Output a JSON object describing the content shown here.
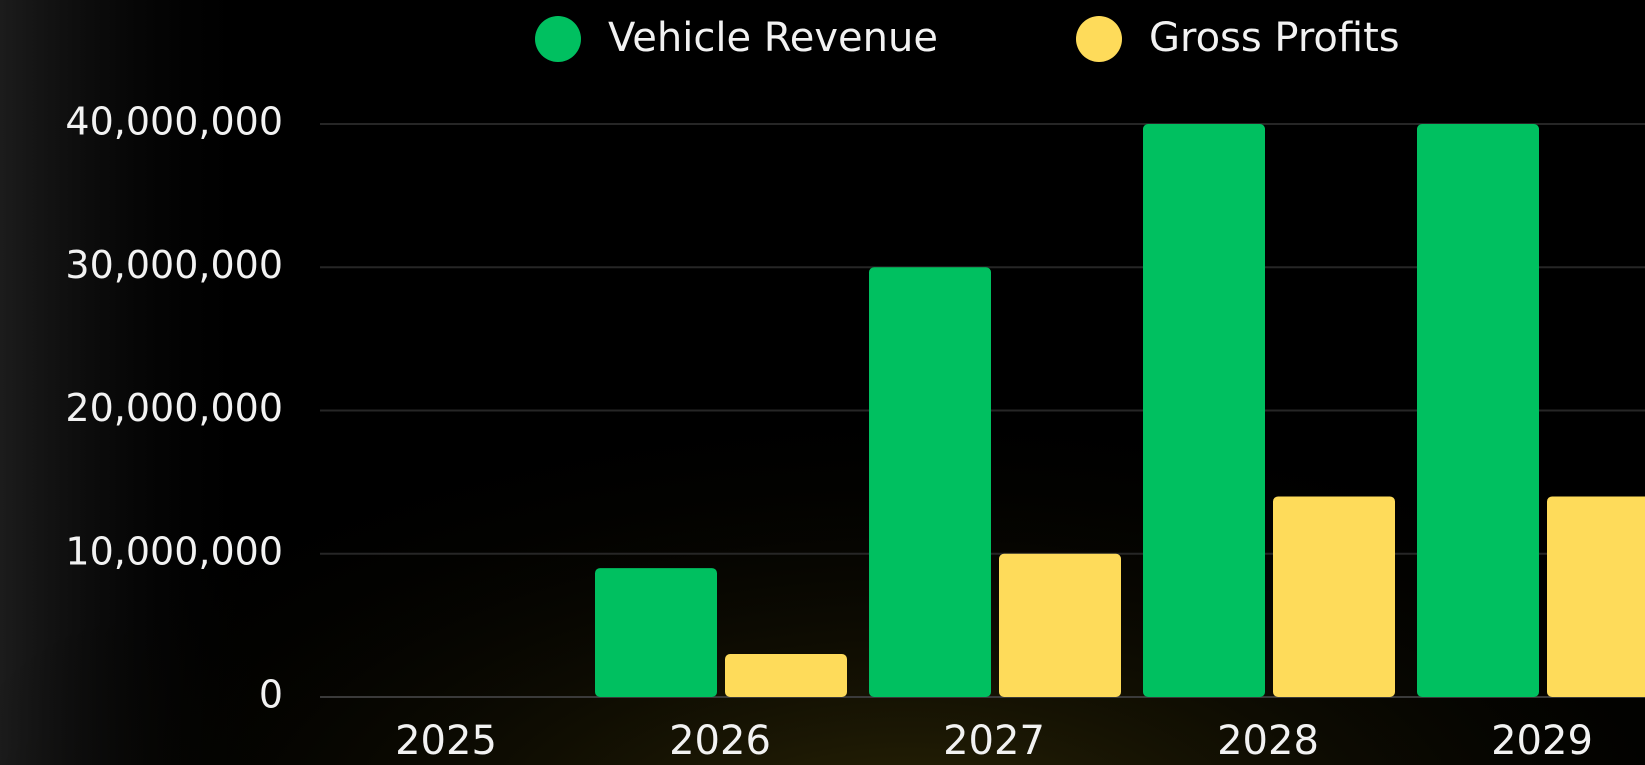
{
  "chart_data": {
    "type": "bar",
    "categories": [
      "2025",
      "2026",
      "2027",
      "2028",
      "2029"
    ],
    "series": [
      {
        "name": "Vehicle Revenue",
        "color": "#00c060",
        "values": [
          0,
          9000000,
          30000000,
          40000000,
          40000000
        ]
      },
      {
        "name": "Gross Profits",
        "color": "#fedb5a",
        "values": [
          0,
          3000000,
          10000000,
          14000000,
          14000000
        ]
      }
    ],
    "ylim": [
      0,
      40000000
    ],
    "yticks": [
      {
        "value": 0,
        "label": "0"
      },
      {
        "value": 10000000,
        "label": "10,000,000"
      },
      {
        "value": 20000000,
        "label": "20,000,000"
      },
      {
        "value": 30000000,
        "label": "30,000,000"
      },
      {
        "value": 40000000,
        "label": "40,000,000"
      }
    ],
    "grid": true,
    "legend": "top"
  }
}
